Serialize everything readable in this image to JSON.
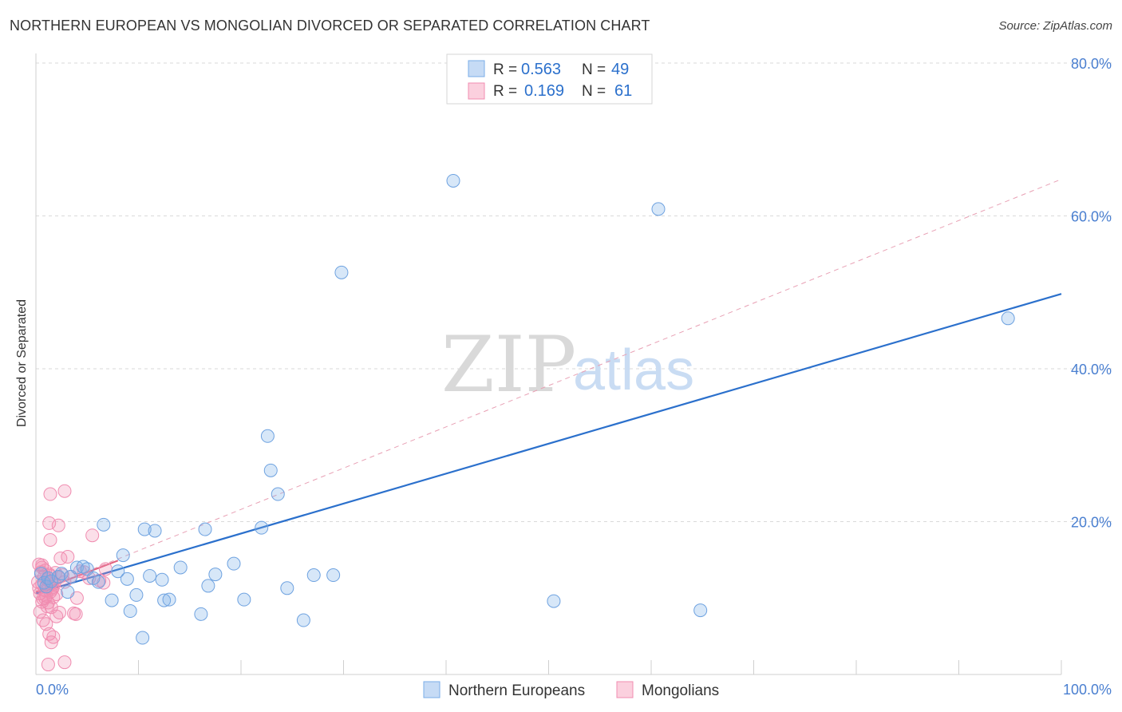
{
  "header": {
    "title": "NORTHERN EUROPEAN VS MONGOLIAN DIVORCED OR SEPARATED CORRELATION CHART",
    "source": "Source: ZipAtlas.com"
  },
  "watermark": {
    "zip": "ZIP",
    "atlas": "atlas"
  },
  "colors": {
    "blue": "#7aaee8",
    "blue_line": "#2b70cc",
    "pink": "#f08cb0",
    "pink_line": "#e0607e",
    "axis_text": "#4a7fd0",
    "grid": "#d9d9d9"
  },
  "chart_data": {
    "type": "scatter",
    "title": "NORTHERN EUROPEAN VS MONGOLIAN DIVORCED OR SEPARATED CORRELATION CHART",
    "xlabel": "",
    "ylabel": "Divorced or Separated",
    "xlim": [
      0,
      100
    ],
    "ylim": [
      0,
      80
    ],
    "x_tick_labels": [
      "0.0%",
      "100.0%"
    ],
    "y_ticks": [
      20,
      40,
      60,
      80
    ],
    "y_tick_labels": [
      "20.0%",
      "40.0%",
      "60.0%",
      "80.0%"
    ],
    "legend_stats": [
      {
        "r_label": "R =",
        "r_value": "0.563",
        "n_label": "N =",
        "n_value": "49"
      },
      {
        "r_label": "R =",
        "r_value": "0.169",
        "n_label": "N =",
        "n_value": "61"
      }
    ],
    "series": [
      {
        "name": "Northern Europeans",
        "color": "#7aaee8",
        "trend": {
          "x": [
            0,
            100
          ],
          "y": [
            10.6,
            49.8
          ],
          "style": "solid"
        },
        "points": [
          [
            0.5,
            13.2
          ],
          [
            0.8,
            12.0
          ],
          [
            1.0,
            11.5
          ],
          [
            1.2,
            12.6
          ],
          [
            1.5,
            12.2
          ],
          [
            2.2,
            12.8
          ],
          [
            2.5,
            13.2
          ],
          [
            3.1,
            10.8
          ],
          [
            3.4,
            12.8
          ],
          [
            4.0,
            14.0
          ],
          [
            4.6,
            14.1
          ],
          [
            5.0,
            13.8
          ],
          [
            5.6,
            12.6
          ],
          [
            6.1,
            12.1
          ],
          [
            6.6,
            19.6
          ],
          [
            7.4,
            9.7
          ],
          [
            8.0,
            13.5
          ],
          [
            8.5,
            15.6
          ],
          [
            8.9,
            12.5
          ],
          [
            9.2,
            8.3
          ],
          [
            9.8,
            10.4
          ],
          [
            10.4,
            4.8
          ],
          [
            10.6,
            19.0
          ],
          [
            11.1,
            12.9
          ],
          [
            11.6,
            18.8
          ],
          [
            12.3,
            12.4
          ],
          [
            12.5,
            9.7
          ],
          [
            13.0,
            9.8
          ],
          [
            14.1,
            14.0
          ],
          [
            16.1,
            7.9
          ],
          [
            16.5,
            19.0
          ],
          [
            16.8,
            11.6
          ],
          [
            17.5,
            13.1
          ],
          [
            19.3,
            14.5
          ],
          [
            20.3,
            9.8
          ],
          [
            22.0,
            19.2
          ],
          [
            22.6,
            31.2
          ],
          [
            22.9,
            26.7
          ],
          [
            23.6,
            23.6
          ],
          [
            24.5,
            11.3
          ],
          [
            26.1,
            7.1
          ],
          [
            27.1,
            13.0
          ],
          [
            29.0,
            13.0
          ],
          [
            29.8,
            52.6
          ],
          [
            40.7,
            64.6
          ],
          [
            50.5,
            9.6
          ],
          [
            60.7,
            60.9
          ],
          [
            64.8,
            8.4
          ],
          [
            94.8,
            46.6
          ]
        ]
      },
      {
        "name": "Mongolians",
        "color": "#f08cb0",
        "trend": {
          "x": [
            0,
            100
          ],
          "y": [
            10.8,
            64.8
          ],
          "style": "dashed"
        },
        "points": [
          [
            0.2,
            12.1
          ],
          [
            0.3,
            11.3
          ],
          [
            0.4,
            10.6
          ],
          [
            0.5,
            13.4
          ],
          [
            0.6,
            11.8
          ],
          [
            0.7,
            9.9
          ],
          [
            0.8,
            12.8
          ],
          [
            0.9,
            11.0
          ],
          [
            1.0,
            10.3
          ],
          [
            1.1,
            12.4
          ],
          [
            1.2,
            11.6
          ],
          [
            1.3,
            13.1
          ],
          [
            1.4,
            10.8
          ],
          [
            1.5,
            12.0
          ],
          [
            1.6,
            11.2
          ],
          [
            1.7,
            10.1
          ],
          [
            0.3,
            14.4
          ],
          [
            0.6,
            14.0
          ],
          [
            0.9,
            13.6
          ],
          [
            1.2,
            9.4
          ],
          [
            1.5,
            8.8
          ],
          [
            1.8,
            11.9
          ],
          [
            2.0,
            10.5
          ],
          [
            2.2,
            12.7
          ],
          [
            0.4,
            8.2
          ],
          [
            0.7,
            7.1
          ],
          [
            1.0,
            6.6
          ],
          [
            1.3,
            5.3
          ],
          [
            1.5,
            4.2
          ],
          [
            1.7,
            4.9
          ],
          [
            2.0,
            7.6
          ],
          [
            2.3,
            8.1
          ],
          [
            0.6,
            9.5
          ],
          [
            0.9,
            10.0
          ],
          [
            1.1,
            8.9
          ],
          [
            1.4,
            12.9
          ],
          [
            1.6,
            11.4
          ],
          [
            1.9,
            13.3
          ],
          [
            2.4,
            15.2
          ],
          [
            2.6,
            13.0
          ],
          [
            2.8,
            12.1
          ],
          [
            3.1,
            15.4
          ],
          [
            3.4,
            12.8
          ],
          [
            3.7,
            8.0
          ],
          [
            3.9,
            7.9
          ],
          [
            4.0,
            10.0
          ],
          [
            4.3,
            13.5
          ],
          [
            4.7,
            13.4
          ],
          [
            5.2,
            12.6
          ],
          [
            5.5,
            18.2
          ],
          [
            6.2,
            12.3
          ],
          [
            6.6,
            12.0
          ],
          [
            1.3,
            19.8
          ],
          [
            2.2,
            19.5
          ],
          [
            1.4,
            17.6
          ],
          [
            1.4,
            23.6
          ],
          [
            2.8,
            24.0
          ],
          [
            0.6,
            14.3
          ],
          [
            1.2,
            1.3
          ],
          [
            2.8,
            1.6
          ],
          [
            6.8,
            13.8
          ]
        ]
      }
    ],
    "legend": [
      "Northern Europeans",
      "Mongolians"
    ],
    "grid": true
  }
}
